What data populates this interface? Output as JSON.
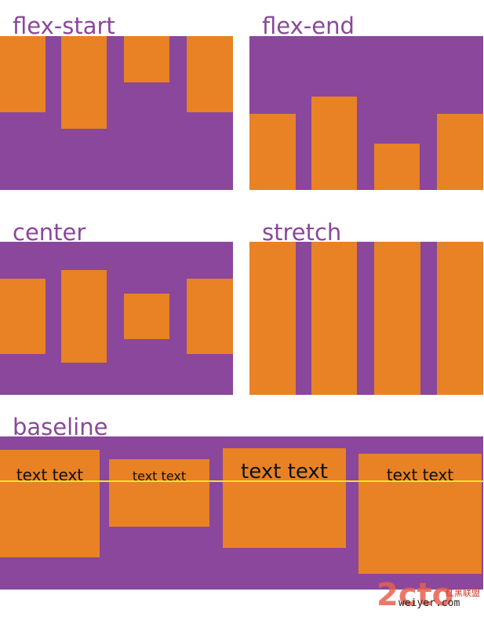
{
  "colors": {
    "container": "#8a479b",
    "item": "#e88224",
    "label": "#8a479b",
    "baseline_line": "#f5e71c"
  },
  "panels": {
    "flex_start": {
      "label": "flex-start"
    },
    "flex_end": {
      "label": "flex-end"
    },
    "center": {
      "label": "center"
    },
    "stretch": {
      "label": "stretch"
    },
    "baseline": {
      "label": "baseline"
    }
  },
  "baseline_items": [
    "text text",
    "text text",
    "text text",
    "text text"
  ],
  "watermark": {
    "logo": "2cto",
    "cn": "红黑联盟",
    "site": "weiyer.com"
  }
}
